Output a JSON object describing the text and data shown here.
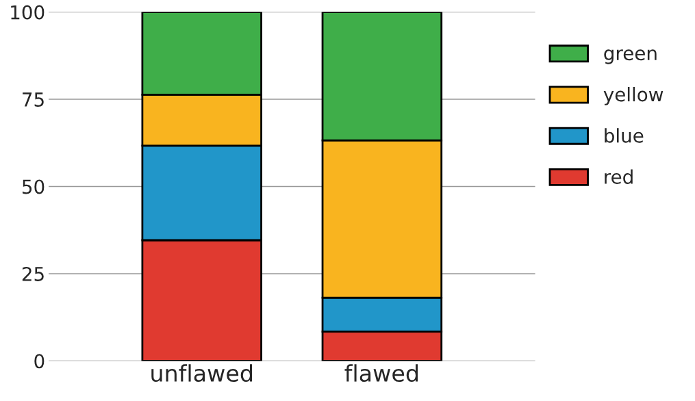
{
  "chart_data": {
    "type": "bar",
    "stacked": true,
    "categories": [
      "unflawed",
      "flawed"
    ],
    "series": [
      {
        "name": "red",
        "color": "#e03a30",
        "values": [
          34.6,
          8.4
        ]
      },
      {
        "name": "blue",
        "color": "#2196c9",
        "values": [
          27.1,
          9.7
        ]
      },
      {
        "name": "yellow",
        "color": "#f9b41f",
        "values": [
          14.6,
          45.1
        ]
      },
      {
        "name": "green",
        "color": "#3fae49",
        "values": [
          23.7,
          36.8
        ]
      }
    ],
    "ylim": [
      0,
      100
    ],
    "yticks": [
      0,
      25,
      50,
      75,
      100
    ],
    "grid": "y",
    "legend": "right"
  }
}
